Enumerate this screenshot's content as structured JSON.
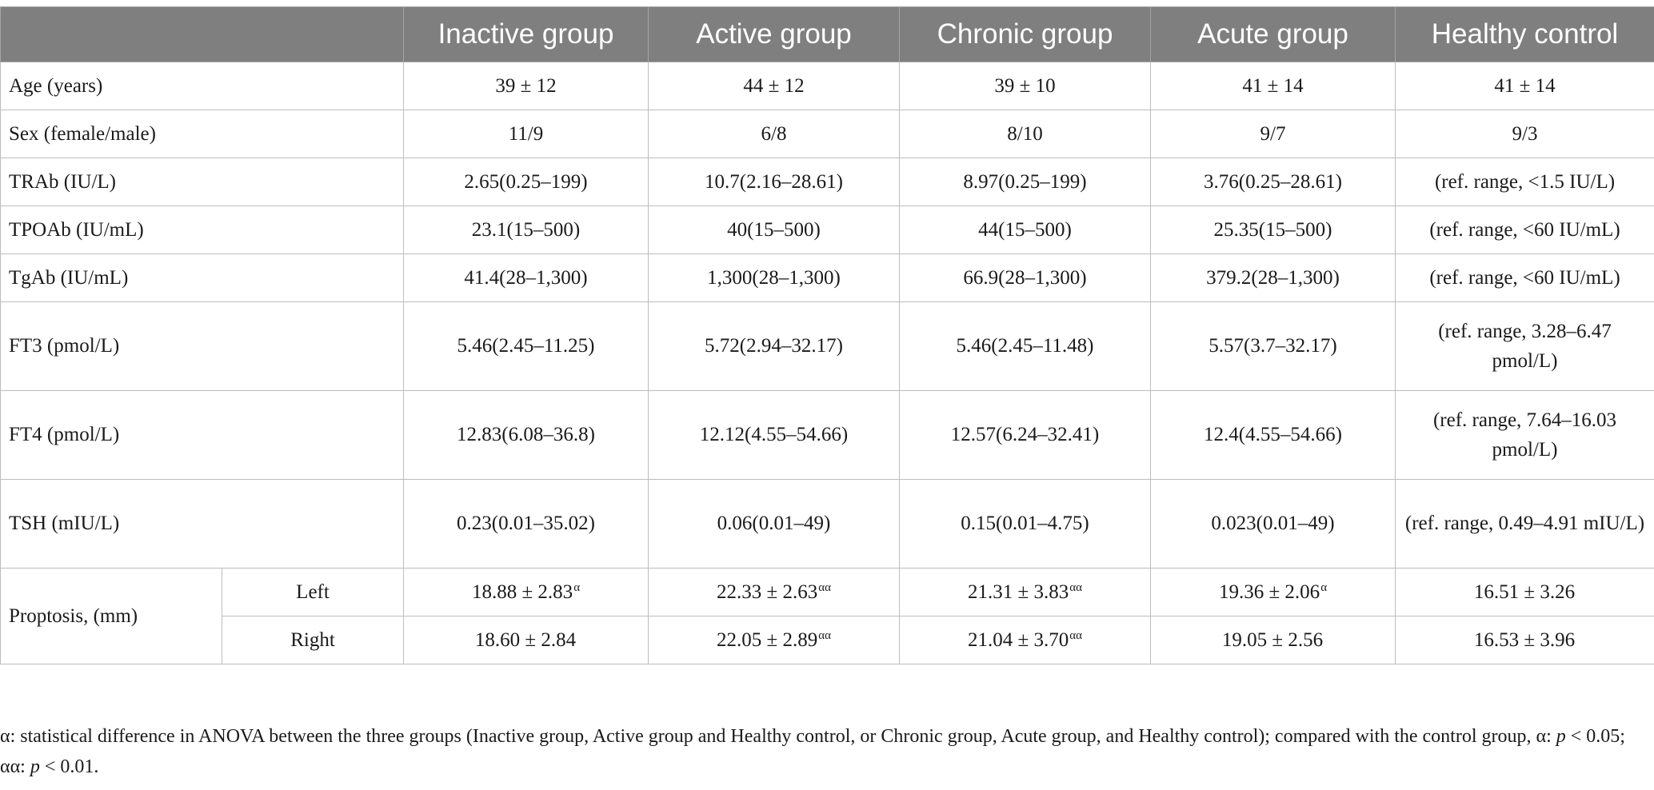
{
  "table": {
    "headers": [
      "",
      "Inactive group",
      "Active group",
      "Chronic group",
      "Acute group",
      "Healthy control"
    ],
    "rows": [
      {
        "label": "Age (years)",
        "values": [
          "39 ± 12",
          "44 ± 12",
          "39 ± 10",
          "41 ± 14",
          "41 ± 14"
        ]
      },
      {
        "label": "Sex (female/male)",
        "values": [
          "11/9",
          "6/8",
          "8/10",
          "9/7",
          "9/3"
        ]
      },
      {
        "label": "TRAb (IU/L)",
        "values": [
          "2.65(0.25–199)",
          "10.7(2.16–28.61)",
          "8.97(0.25–199)",
          "3.76(0.25–28.61)",
          "(ref. range, <1.5 IU/L)"
        ]
      },
      {
        "label": "TPOAb (IU/mL)",
        "values": [
          "23.1(15–500)",
          "40(15–500)",
          "44(15–500)",
          "25.35(15–500)",
          "(ref. range, <60 IU/mL)"
        ]
      },
      {
        "label": "TgAb (IU/mL)",
        "values": [
          "41.4(28–1,300)",
          "1,300(28–1,300)",
          "66.9(28–1,300)",
          "379.2(28–1,300)",
          "(ref. range, <60 IU/mL)"
        ]
      },
      {
        "label": "FT3 (pmol/L)",
        "values": [
          "5.46(2.45–11.25)",
          "5.72(2.94–32.17)",
          "5.46(2.45–11.48)",
          "5.57(3.7–32.17)",
          "(ref. range, 3.28–6.47 pmol/L)"
        ]
      },
      {
        "label": "FT4 (pmol/L)",
        "values": [
          "12.83(6.08–36.8)",
          "12.12(4.55–54.66)",
          "12.57(6.24–32.41)",
          "12.4(4.55–54.66)",
          "(ref. range, 7.64–16.03 pmol/L)"
        ]
      },
      {
        "label": "TSH (mIU/L)",
        "values": [
          "0.23(0.01–35.02)",
          "0.06(0.01–49)",
          "0.15(0.01–4.75)",
          "0.023(0.01–49)",
          "(ref. range, 0.49–4.91 mIU/L)"
        ]
      }
    ],
    "proptosis": {
      "label": "Proptosis, (mm)",
      "left": {
        "label": "Left",
        "values": [
          "18.88 ± 2.83",
          "22.33 ± 2.63",
          "21.31 ± 3.83",
          "19.36 ± 2.06",
          "16.51 ± 3.26"
        ],
        "marks": [
          "α",
          "αα",
          "αα",
          "α",
          ""
        ]
      },
      "right": {
        "label": "Right",
        "values": [
          "18.60 ± 2.84",
          "22.05 ± 2.89",
          "21.04 ± 3.70",
          "19.05 ± 2.56",
          "16.53 ± 3.96"
        ],
        "marks": [
          "",
          "αα",
          "αα",
          "",
          ""
        ]
      }
    }
  },
  "footnote": {
    "text": "α: statistical difference in ANOVA between the three groups (Inactive group, Active group and Healthy control, or Chronic group, Acute group, and Healthy control); compared with the control group, α: ",
    "p1": "p",
    "t1": " < 0.05; αα: ",
    "p2": "p",
    "t2": " < 0.01."
  }
}
